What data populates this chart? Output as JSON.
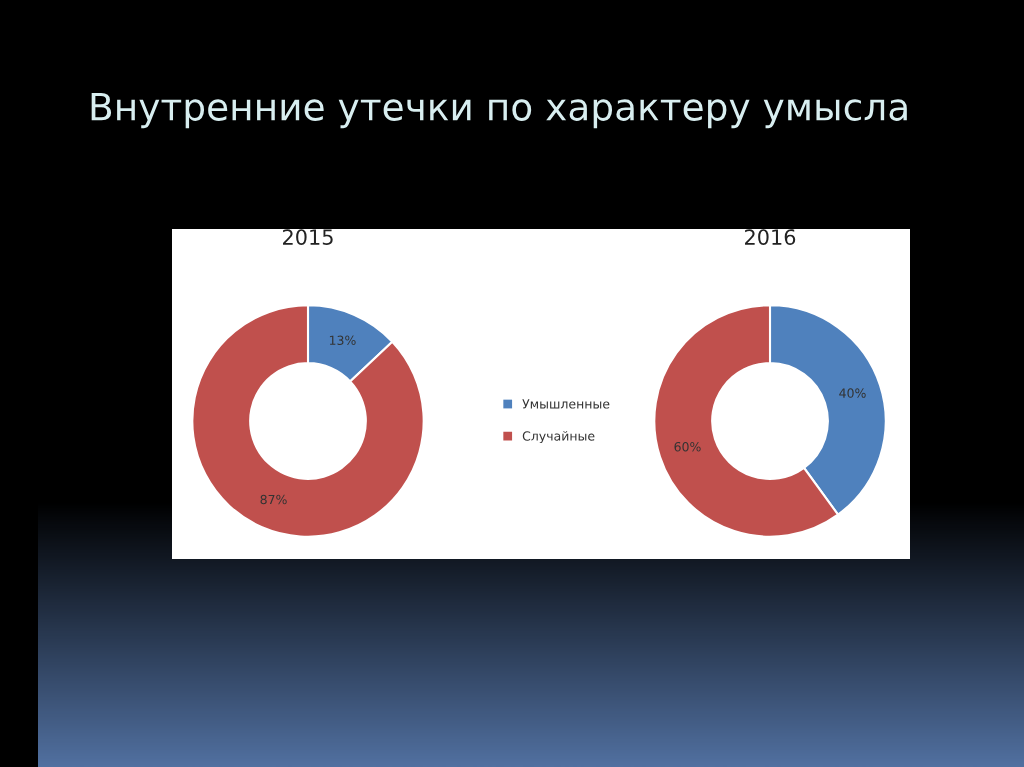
{
  "chart_data": [
    {
      "type": "other",
      "title": "Внутренние утечки по характеру умысла"
    },
    {
      "type": "donut",
      "title": "2015",
      "categories": [
        "Умышленные",
        "Случайные"
      ],
      "values": [
        13,
        87
      ],
      "colors": [
        "#4f81bd",
        "#c0504d"
      ],
      "value_labels": [
        "13%",
        "87%"
      ],
      "legend": "right"
    },
    {
      "type": "donut",
      "title": "2016",
      "categories": [
        null,
        null
      ],
      "values": [
        40,
        60
      ],
      "colors": [
        "#4f81bd",
        "#c0504d"
      ],
      "value_labels": [
        "40%",
        "60%"
      ],
      "legend": false
    }
  ]
}
